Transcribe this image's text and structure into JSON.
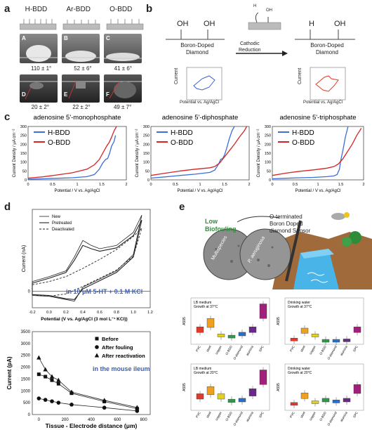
{
  "panel_a": {
    "label": "a",
    "headers": [
      "H-BDD",
      "Ar-BDD",
      "O-BDD"
    ],
    "top_photo_letters": [
      "A",
      "B",
      "C"
    ],
    "top_angles": [
      "110 ± 1°",
      "52 ± 6°",
      "41 ± 6°"
    ],
    "bottom_photo_letters": [
      "D",
      "E",
      "F"
    ],
    "bottom_angles": [
      "20 ± 2°",
      "22 ± 2°",
      "49 ± 7°"
    ]
  },
  "panel_b": {
    "label": "b",
    "left_groups": [
      "OH",
      "OH"
    ],
    "left_substrate": [
      "Boron-Doped",
      "Diamond"
    ],
    "arrow_text": [
      "Cathodic",
      "Reduction"
    ],
    "icon_text": [
      "H",
      "OH"
    ],
    "right_groups": [
      "H",
      "OH"
    ],
    "right_substrate": [
      "Boron-Doped",
      "Diamond"
    ],
    "inset_ylabel": "Current",
    "inset_xlabel": "Potential vs. Ag/AgCl",
    "colors": {
      "before": "#3b5fd1",
      "after": "#e23a2a"
    }
  },
  "panel_c": {
    "label": "c",
    "titles": [
      "adenosine 5'-monophosphate",
      "adenosine 5'-diphosphate",
      "adenosine 5'-triphosphate"
    ],
    "ylabel": "Current Density / μA cm⁻²",
    "xlabel": "Potential / V vs. Ag/AgCl",
    "legend": [
      "H-BDD",
      "O-BDD"
    ],
    "colors": {
      "H-BDD": "#3a6fd8",
      "O-BDD": "#d42424"
    }
  },
  "panel_d": {
    "label": "d",
    "cv_legend": [
      "New",
      "Pretreated",
      "Deactivated"
    ],
    "cv_annotation": "in 10 μM 5-HT + 0.1 M KCl",
    "cv_ylabel": "Current (nA)",
    "cv_xlabel": "Potential (V vs. Ag/AgCl (3 mol L⁻¹ KCl))",
    "dist_legend": [
      "Before",
      "After fouling",
      "After reactivation"
    ],
    "dist_annotation": "in the mouse ileum",
    "dist_ylabel": "Current (pA)",
    "dist_xlabel": "Tissue - Electrode distance (μm)",
    "annotation_color": "#3a5fb8"
  },
  "panel_e": {
    "label": "e",
    "callout_left": [
      "Low",
      "Biofouling"
    ],
    "callout_right": [
      "O-terminated",
      "Boron Doped",
      "diamond Sensor"
    ],
    "micro_labels": [
      "Multispecies",
      "P. aeruginosa"
    ],
    "box_titles": [
      [
        "LB medium",
        "Growth at 37°C"
      ],
      [
        "Drinking water",
        "Growth at 37°C"
      ],
      [
        "LB medium",
        "Growth at 20°C"
      ],
      [
        "Drinking water",
        "Growth at 20°C"
      ]
    ],
    "box_ylabel": "A595",
    "box_categories": [
      "PVC",
      "steel",
      "copper",
      "O-BDD",
      "O-diamond",
      "alumina",
      "SPC"
    ]
  },
  "chart_data": [
    {
      "type": "line",
      "title": "adenosine 5'-monophosphate",
      "xlabel": "Potential / V vs. Ag/AgCl",
      "ylabel": "Current Density / μA cm⁻²",
      "xlim": [
        0,
        2
      ],
      "ylim": [
        0,
        300
      ],
      "xticks": [
        0,
        0.5,
        1,
        1.5,
        2
      ],
      "yticks": [
        0,
        50,
        100,
        150,
        200,
        250,
        300
      ],
      "series": [
        {
          "name": "H-BDD",
          "x": [
            0,
            0.3,
            0.6,
            0.9,
            1.2,
            1.35,
            1.45,
            1.52,
            1.58,
            1.62,
            1.66,
            1.7,
            1.75,
            1.78
          ],
          "y": [
            4,
            6,
            9,
            12,
            18,
            30,
            60,
            95,
            115,
            120,
            150,
            190,
            215,
            250
          ]
        },
        {
          "name": "O-BDD",
          "x": [
            0,
            0.3,
            0.6,
            0.9,
            1.2,
            1.35,
            1.45,
            1.5,
            1.55,
            1.6,
            1.65,
            1.7,
            1.75,
            1.8
          ],
          "y": [
            10,
            17,
            28,
            40,
            60,
            85,
            115,
            140,
            165,
            190,
            210,
            240,
            275,
            300
          ]
        }
      ]
    },
    {
      "type": "line",
      "title": "adenosine 5'-diphosphate",
      "xlabel": "Potential / V vs. Ag/AgCl",
      "ylabel": "Current Density / μA cm⁻²",
      "xlim": [
        0,
        2
      ],
      "ylim": [
        0,
        300
      ],
      "xticks": [
        0,
        0.5,
        1,
        1.5,
        2
      ],
      "yticks": [
        0,
        50,
        100,
        150,
        200,
        250,
        300
      ],
      "series": [
        {
          "name": "H-BDD",
          "x": [
            0,
            0.3,
            0.6,
            0.9,
            1.2,
            1.3,
            1.38,
            1.42,
            1.46,
            1.5,
            1.55,
            1.6,
            1.65,
            1.7
          ],
          "y": [
            10,
            17,
            25,
            32,
            42,
            55,
            90,
            115,
            120,
            140,
            185,
            235,
            275,
            300
          ]
        },
        {
          "name": "O-BDD",
          "x": [
            0,
            0.3,
            0.6,
            0.9,
            1.2,
            1.3,
            1.4,
            1.5,
            1.6,
            1.7,
            1.8,
            1.9,
            1.95
          ],
          "y": [
            25,
            38,
            50,
            60,
            68,
            75,
            95,
            130,
            165,
            200,
            240,
            275,
            300
          ]
        }
      ]
    },
    {
      "type": "line",
      "title": "adenosine 5'-triphosphate",
      "xlabel": "Potential / V vs. Ag/AgCl",
      "ylabel": "Current Density / μA cm⁻²",
      "xlim": [
        0,
        2
      ],
      "ylim": [
        0,
        300
      ],
      "xticks": [
        0,
        0.5,
        1,
        1.5,
        2
      ],
      "yticks": [
        0,
        50,
        100,
        150,
        200,
        250,
        300
      ],
      "series": [
        {
          "name": "H-BDD",
          "x": [
            0,
            0.3,
            0.6,
            0.9,
            1.2,
            1.35,
            1.42,
            1.47,
            1.5,
            1.55,
            1.6,
            1.66
          ],
          "y": [
            6,
            9,
            12,
            14,
            18,
            22,
            30,
            60,
            110,
            170,
            240,
            300
          ]
        },
        {
          "name": "O-BDD",
          "x": [
            0,
            0.3,
            0.6,
            0.9,
            1.2,
            1.35,
            1.45,
            1.55,
            1.65,
            1.75,
            1.85,
            1.95
          ],
          "y": [
            25,
            38,
            48,
            56,
            66,
            75,
            90,
            120,
            160,
            200,
            250,
            290
          ]
        }
      ]
    },
    {
      "type": "line",
      "xlabel": "Potential (V vs. Ag/AgCl (3 mol L⁻¹ KCl))",
      "ylabel": "Current (nA)",
      "xlim": [
        -0.2,
        1.2
      ],
      "ylim": [
        -2,
        10
      ],
      "xticks": [
        -0.2,
        0,
        0.2,
        0.4,
        0.6,
        0.8,
        1.0,
        1.2
      ],
      "yticks": [
        0
      ],
      "series": [
        {
          "name": "New",
          "x": [
            -0.2,
            0,
            0.2,
            0.3,
            0.4,
            0.5,
            0.6,
            0.8,
            1.0,
            1.1,
            1.0,
            0.8,
            0.6,
            0.4,
            0.3,
            0.2,
            0,
            -0.2
          ],
          "y": [
            1.2,
            1.8,
            2.5,
            4.2,
            6.2,
            5.6,
            5.2,
            5.6,
            7.2,
            9.3,
            4.5,
            2.5,
            1.5,
            0.5,
            -1.2,
            -1.0,
            -0.6,
            -0.5
          ]
        },
        {
          "name": "Pretreated",
          "x": [
            -0.2,
            0,
            0.2,
            0.3,
            0.4,
            0.5,
            0.6,
            0.8,
            1.0,
            1.1,
            1.0,
            0.8,
            0.6,
            0.4,
            0.3,
            0.2,
            0,
            -0.2
          ],
          "y": [
            1.0,
            1.6,
            2.3,
            3.8,
            5.6,
            5.2,
            4.9,
            5.3,
            6.8,
            8.7,
            4.2,
            2.3,
            1.3,
            0.3,
            -1.0,
            -0.9,
            -0.5,
            -0.4
          ]
        },
        {
          "name": "Deactivated",
          "x": [
            -0.2,
            0,
            0.2,
            0.4,
            0.6,
            0.8,
            1.0,
            1.1,
            1.0,
            0.8,
            0.6,
            0.4,
            0.2,
            0,
            -0.2
          ],
          "y": [
            0.8,
            1.2,
            1.8,
            2.8,
            3.9,
            5.1,
            6.7,
            7.7,
            4.3,
            2.6,
            1.6,
            0.6,
            -0.3,
            -0.6,
            -0.4
          ]
        }
      ]
    },
    {
      "type": "scatter",
      "xlabel": "Tissue - Electrode distance (μm)",
      "ylabel": "Current (pA)",
      "xlim": [
        -50,
        850
      ],
      "ylim": [
        0,
        3500
      ],
      "xticks": [
        0,
        200,
        400,
        600,
        800
      ],
      "yticks": [
        0,
        500,
        1000,
        1500,
        2000,
        2500,
        3000,
        3500
      ],
      "series": [
        {
          "name": "Before",
          "x": [
            0,
            50,
            100,
            150,
            250,
            500,
            750
          ],
          "y": [
            1700,
            1600,
            1450,
            1300,
            900,
            550,
            250
          ]
        },
        {
          "name": "After fouling",
          "x": [
            0,
            50,
            100,
            150,
            250,
            500,
            750
          ],
          "y": [
            680,
            620,
            560,
            500,
            420,
            290,
            150
          ]
        },
        {
          "name": "After reactivation",
          "x": [
            0,
            50,
            100,
            150,
            250,
            500,
            750
          ],
          "y": [
            2400,
            1900,
            1600,
            1450,
            950,
            600,
            300
          ]
        }
      ]
    }
  ]
}
